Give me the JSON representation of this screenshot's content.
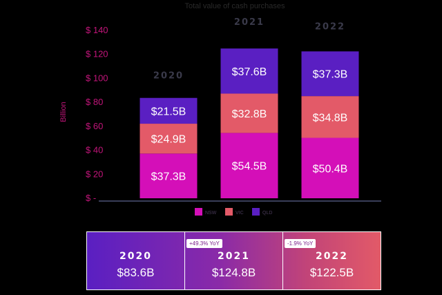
{
  "chart_data": {
    "type": "bar",
    "stacked": true,
    "title": "Total value of cash purchases",
    "ylabel": "Billion",
    "ylim": [
      0,
      140
    ],
    "yticks": [
      "$ -",
      "$ 20",
      "$ 40",
      "$ 60",
      "$ 80",
      "$ 100",
      "$ 120",
      "$ 140"
    ],
    "categories": [
      "2020",
      "2021",
      "2022"
    ],
    "series": [
      {
        "name": "NSW",
        "color": "#d40fb8",
        "values": [
          37.3,
          54.5,
          50.4
        ],
        "labels": [
          "$37.3B",
          "$54.5B",
          "$50.4B"
        ]
      },
      {
        "name": "VIC",
        "color": "#e35a68",
        "values": [
          24.9,
          32.8,
          34.8
        ],
        "labels": [
          "$24.9B",
          "$32.8B",
          "$34.8B"
        ]
      },
      {
        "name": "QLD",
        "color": "#5a1fc2",
        "values": [
          21.5,
          37.6,
          37.3
        ],
        "labels": [
          "$21.5B",
          "$37.6B",
          "$37.3B"
        ]
      }
    ],
    "legend": "bottom"
  },
  "summary": {
    "cells": [
      {
        "year": "2020",
        "total": "$83.6B",
        "yoy": ""
      },
      {
        "year": "2021",
        "total": "$124.8B",
        "yoy": "+49.3% YoY"
      },
      {
        "year": "2022",
        "total": "$122.5B",
        "yoy": "-1.9% YoY"
      }
    ]
  }
}
